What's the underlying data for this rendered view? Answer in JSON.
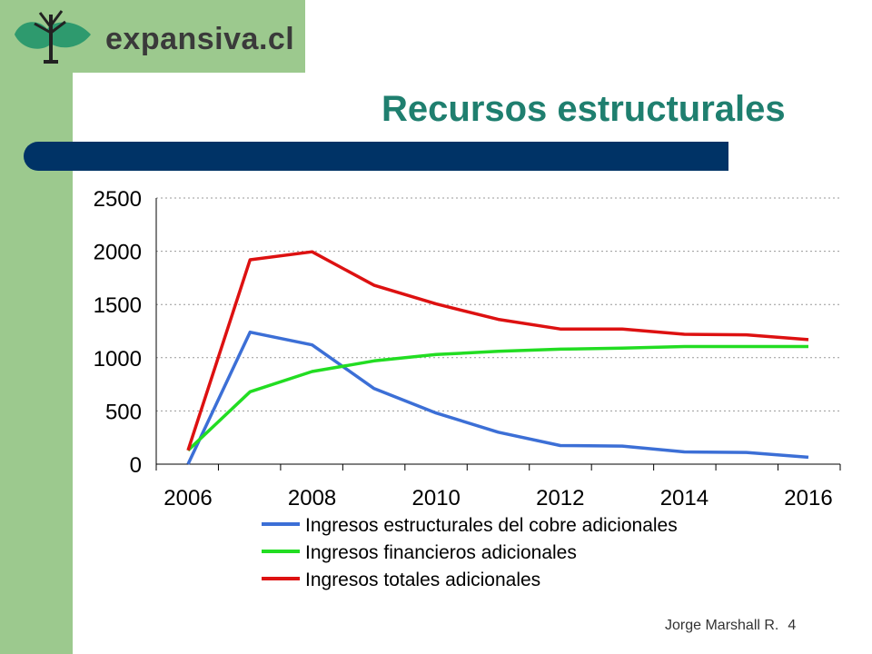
{
  "logo": {
    "text": "expansiva.cl",
    "icon": "tree-bird-icon"
  },
  "slide": {
    "title": "Recursos estructurales"
  },
  "footer": {
    "author": "Jorge Marshall R.",
    "page": "4"
  },
  "colors": {
    "strip": "#9cc98e",
    "title": "#1f7f6f",
    "bar": "#003366"
  },
  "chart_data": {
    "type": "line",
    "title": "",
    "xlabel": "",
    "ylabel": "",
    "x": [
      2006,
      2007,
      2008,
      2009,
      2010,
      2011,
      2012,
      2013,
      2014,
      2015,
      2016
    ],
    "x_ticks": [
      "2006",
      "2008",
      "2010",
      "2012",
      "2014",
      "2016"
    ],
    "y_ticks": [
      "0",
      "500",
      "1000",
      "1500",
      "2000",
      "2500"
    ],
    "ylim": [
      0,
      2500
    ],
    "grid": true,
    "legend_position": "bottom",
    "series": [
      {
        "name": "Ingresos estructurales del cobre adicionales",
        "color": "#3c6fd6",
        "values": [
          0,
          1240,
          1120,
          710,
          480,
          300,
          175,
          170,
          115,
          110,
          65
        ]
      },
      {
        "name": "Ingresos financieros adicionales",
        "color": "#22dd22",
        "values": [
          130,
          680,
          870,
          970,
          1030,
          1060,
          1080,
          1090,
          1105,
          1105,
          1105
        ]
      },
      {
        "name": "Ingresos totales adicionales",
        "color": "#dd1111",
        "values": [
          130,
          1920,
          1995,
          1680,
          1505,
          1360,
          1270,
          1270,
          1220,
          1215,
          1170
        ]
      }
    ]
  }
}
